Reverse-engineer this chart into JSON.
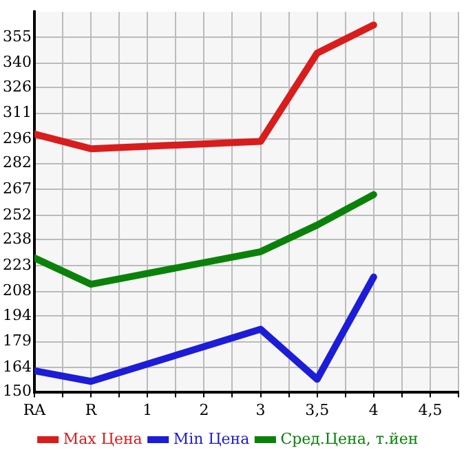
{
  "chart_data": {
    "type": "line",
    "categories": [
      "RA",
      "R",
      "1",
      "2",
      "3",
      "3,5",
      "4",
      "4,5"
    ],
    "series": [
      {
        "name": "Max Цена",
        "color": "#d91c1c",
        "values": [
          299,
          290.5,
          null,
          null,
          294.7,
          345.7,
          362,
          null
        ]
      },
      {
        "name": "Min Цена",
        "color": "#1c1cd9",
        "values": [
          162.2,
          156.1,
          null,
          null,
          186.2,
          157.3,
          216.4,
          null
        ]
      },
      {
        "name": "Сред.Цена, т.йен",
        "color": "#0a820a",
        "values": [
          227.4,
          212.2,
          null,
          null,
          231,
          246.4,
          264,
          null
        ]
      }
    ],
    "ylim": [
      150,
      369.6
    ],
    "yticks": [
      150,
      164,
      179,
      194,
      208,
      223,
      238,
      252,
      267,
      282,
      296,
      311,
      326,
      340,
      355
    ],
    "grid": true,
    "legend": "bottom",
    "marker": "none",
    "line_style": "solid"
  }
}
